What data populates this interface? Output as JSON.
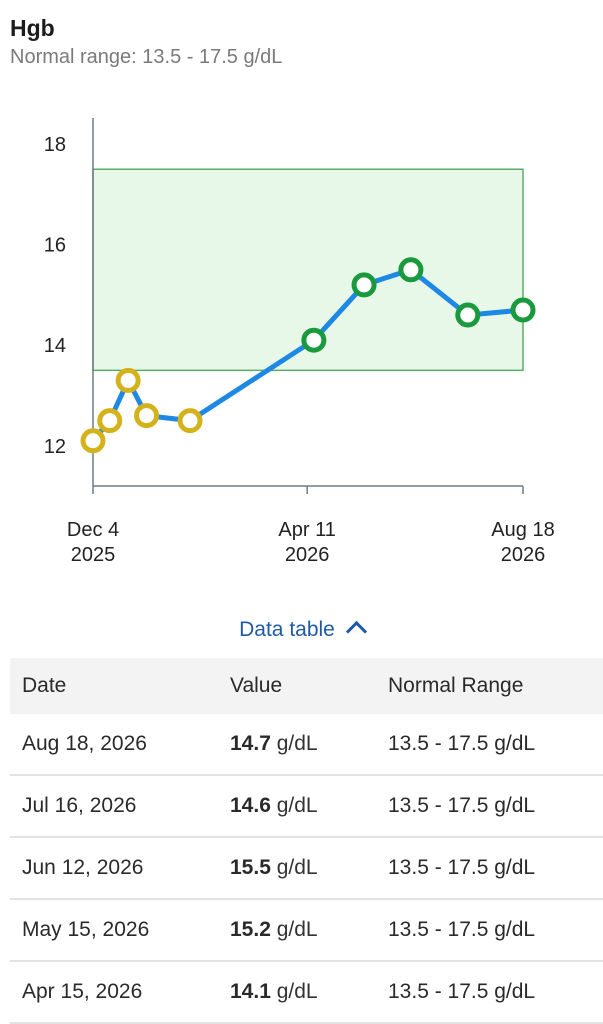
{
  "header": {
    "title": "Hgb",
    "subtitle": "Normal range: 13.5 - 17.5 g/dL"
  },
  "chart_data": {
    "type": "line",
    "x_axis": {
      "type": "date",
      "range": [
        "2025-12-04",
        "2026-08-18"
      ],
      "ticks": [
        {
          "date": "2025-12-04",
          "line1": "Dec 4",
          "line2": "2025"
        },
        {
          "date": "2026-04-11",
          "line1": "Apr 11",
          "line2": "2026"
        },
        {
          "date": "2026-08-18",
          "line1": "Aug 18",
          "line2": "2026"
        }
      ]
    },
    "y_axis": {
      "range": [
        11.2,
        18.4
      ],
      "ticks": [
        12,
        14,
        16,
        18
      ]
    },
    "normal_range": {
      "low": 13.5,
      "high": 17.5
    },
    "grid": false,
    "colors": {
      "line": "#1e88e5",
      "in_range_marker": "#1a9a3c",
      "out_of_range_marker": "#d4b21a",
      "band_fill": "#e8f8e8",
      "band_border": "#5cae6a"
    },
    "points": [
      {
        "date": "2025-12-04",
        "value": 12.1
      },
      {
        "date": "2025-12-14",
        "value": 12.5
      },
      {
        "date": "2025-12-25",
        "value": 13.3
      },
      {
        "date": "2026-01-05",
        "value": 12.6
      },
      {
        "date": "2026-01-31",
        "value": 12.5
      },
      {
        "date": "2026-04-15",
        "value": 14.1
      },
      {
        "date": "2026-05-15",
        "value": 15.2
      },
      {
        "date": "2026-06-12",
        "value": 15.5
      },
      {
        "date": "2026-07-16",
        "value": 14.6
      },
      {
        "date": "2026-08-18",
        "value": 14.7
      }
    ]
  },
  "data_table": {
    "toggle_label": "Data table",
    "columns": [
      "Date",
      "Value",
      "Normal Range"
    ],
    "rows": [
      {
        "date": "Aug 18, 2026",
        "value": "14.7",
        "unit": "g/dL",
        "range": "13.5 - 17.5 g/dL"
      },
      {
        "date": "Jul 16, 2026",
        "value": "14.6",
        "unit": "g/dL",
        "range": "13.5 - 17.5 g/dL"
      },
      {
        "date": "Jun 12, 2026",
        "value": "15.5",
        "unit": "g/dL",
        "range": "13.5 - 17.5 g/dL"
      },
      {
        "date": "May 15, 2026",
        "value": "15.2",
        "unit": "g/dL",
        "range": "13.5 - 17.5 g/dL"
      },
      {
        "date": "Apr 15, 2026",
        "value": "14.1",
        "unit": "g/dL",
        "range": "13.5 - 17.5 g/dL"
      }
    ]
  }
}
